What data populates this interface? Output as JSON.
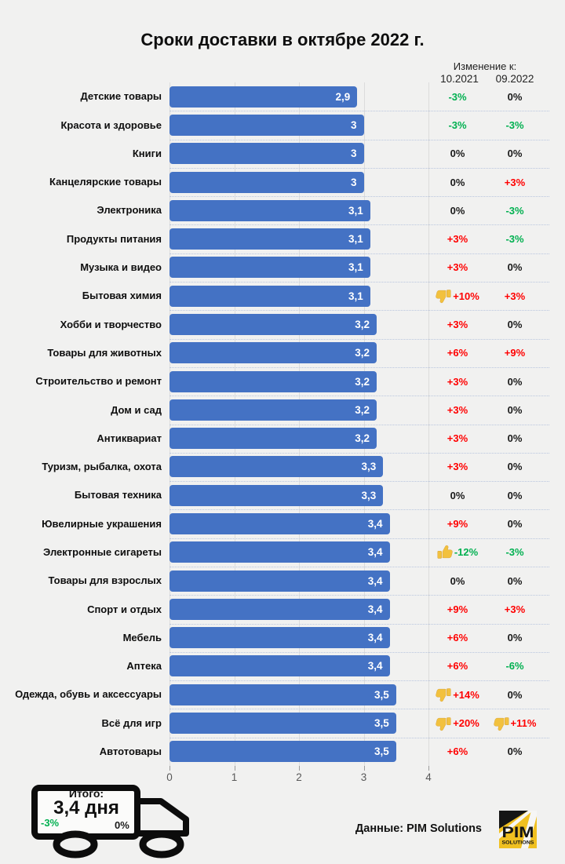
{
  "title": "Сроки доставки в октябре 2022 г.",
  "change_header": {
    "label": "Изменение к:",
    "columns": [
      "10.2021",
      "09.2022"
    ]
  },
  "colors": {
    "bar": "#4472C4",
    "good_green": "#00B050",
    "bad_red": "#FF0000",
    "neutral_black": "#1a1a1a",
    "background": "#f1f1f0",
    "thumb_yellow": "#F2C13E",
    "logo_yellow": "#F0C020"
  },
  "chart_data": {
    "type": "bar",
    "orientation": "horizontal",
    "title": "Сроки доставки в октябре 2022 г.",
    "xlabel": "",
    "ylabel": "",
    "xlim": [
      0,
      4
    ],
    "xticks": [
      0,
      1,
      2,
      3,
      4
    ],
    "grid": "vertical",
    "legend": "none",
    "bar_color": "#4472C4",
    "categories": [
      "Детские товары",
      "Красота и здоровье",
      "Книги",
      "Канцелярские товары",
      "Электроника",
      "Продукты питания",
      "Музыка и видео",
      "Бытовая химия",
      "Хобби и творчество",
      "Товары для животных",
      "Строительство и ремонт",
      "Дом и сад",
      "Антиквариат",
      "Туризм, рыбалка, охота",
      "Бытовая техника",
      "Ювелирные украшения",
      "Электронные сигареты",
      "Товары для взрослых",
      "Спорт и отдых",
      "Мебель",
      "Аптека",
      "Одежда, обувь и аксессуары",
      "Всё для игр",
      "Автотовары"
    ],
    "values": [
      2.9,
      3,
      3,
      3,
      3.1,
      3.1,
      3.1,
      3.1,
      3.2,
      3.2,
      3.2,
      3.2,
      3.2,
      3.3,
      3.3,
      3.4,
      3.4,
      3.4,
      3.4,
      3.4,
      3.4,
      3.5,
      3.5,
      3.5
    ],
    "value_labels": [
      "2,9",
      "3",
      "3",
      "3",
      "3,1",
      "3,1",
      "3,1",
      "3,1",
      "3,2",
      "3,2",
      "3,2",
      "3,2",
      "3,2",
      "3,3",
      "3,3",
      "3,4",
      "3,4",
      "3,4",
      "3,4",
      "3,4",
      "3,4",
      "3,5",
      "3,5",
      "3,5"
    ],
    "change_vs_10_2021": [
      {
        "text": "-3%",
        "color": "#00B050",
        "icon": null
      },
      {
        "text": "-3%",
        "color": "#00B050",
        "icon": null
      },
      {
        "text": "0%",
        "color": "#1a1a1a",
        "icon": null
      },
      {
        "text": "0%",
        "color": "#1a1a1a",
        "icon": null
      },
      {
        "text": "0%",
        "color": "#1a1a1a",
        "icon": null
      },
      {
        "text": "+3%",
        "color": "#FF0000",
        "icon": null
      },
      {
        "text": "+3%",
        "color": "#FF0000",
        "icon": null
      },
      {
        "text": "+10%",
        "color": "#FF0000",
        "icon": "thumbs-down"
      },
      {
        "text": "+3%",
        "color": "#FF0000",
        "icon": null
      },
      {
        "text": "+6%",
        "color": "#FF0000",
        "icon": null
      },
      {
        "text": "+3%",
        "color": "#FF0000",
        "icon": null
      },
      {
        "text": "+3%",
        "color": "#FF0000",
        "icon": null
      },
      {
        "text": "+3%",
        "color": "#FF0000",
        "icon": null
      },
      {
        "text": "+3%",
        "color": "#FF0000",
        "icon": null
      },
      {
        "text": "0%",
        "color": "#1a1a1a",
        "icon": null
      },
      {
        "text": "+9%",
        "color": "#FF0000",
        "icon": null
      },
      {
        "text": "-12%",
        "color": "#00B050",
        "icon": "thumbs-up"
      },
      {
        "text": "0%",
        "color": "#1a1a1a",
        "icon": null
      },
      {
        "text": "+9%",
        "color": "#FF0000",
        "icon": null
      },
      {
        "text": "+6%",
        "color": "#FF0000",
        "icon": null
      },
      {
        "text": "+6%",
        "color": "#FF0000",
        "icon": null
      },
      {
        "text": "+14%",
        "color": "#FF0000",
        "icon": "thumbs-down"
      },
      {
        "text": "+20%",
        "color": "#FF0000",
        "icon": "thumbs-down"
      },
      {
        "text": "+6%",
        "color": "#FF0000",
        "icon": null
      }
    ],
    "change_vs_09_2022": [
      {
        "text": "0%",
        "color": "#1a1a1a",
        "icon": null
      },
      {
        "text": "-3%",
        "color": "#00B050",
        "icon": null
      },
      {
        "text": "0%",
        "color": "#1a1a1a",
        "icon": null
      },
      {
        "text": "+3%",
        "color": "#FF0000",
        "icon": null
      },
      {
        "text": "-3%",
        "color": "#00B050",
        "icon": null
      },
      {
        "text": "-3%",
        "color": "#00B050",
        "icon": null
      },
      {
        "text": "0%",
        "color": "#1a1a1a",
        "icon": null
      },
      {
        "text": "+3%",
        "color": "#FF0000",
        "icon": null
      },
      {
        "text": "0%",
        "color": "#1a1a1a",
        "icon": null
      },
      {
        "text": "+9%",
        "color": "#FF0000",
        "icon": null
      },
      {
        "text": "0%",
        "color": "#1a1a1a",
        "icon": null
      },
      {
        "text": "0%",
        "color": "#1a1a1a",
        "icon": null
      },
      {
        "text": "0%",
        "color": "#1a1a1a",
        "icon": null
      },
      {
        "text": "0%",
        "color": "#1a1a1a",
        "icon": null
      },
      {
        "text": "0%",
        "color": "#1a1a1a",
        "icon": null
      },
      {
        "text": "0%",
        "color": "#1a1a1a",
        "icon": null
      },
      {
        "text": "-3%",
        "color": "#00B050",
        "icon": null
      },
      {
        "text": "0%",
        "color": "#1a1a1a",
        "icon": null
      },
      {
        "text": "+3%",
        "color": "#FF0000",
        "icon": null
      },
      {
        "text": "0%",
        "color": "#1a1a1a",
        "icon": null
      },
      {
        "text": "-6%",
        "color": "#00B050",
        "icon": null
      },
      {
        "text": "0%",
        "color": "#1a1a1a",
        "icon": null
      },
      {
        "text": "+11%",
        "color": "#FF0000",
        "icon": "thumbs-down"
      },
      {
        "text": "0%",
        "color": "#1a1a1a",
        "icon": null
      }
    ]
  },
  "footer": {
    "total_label": "Итого:",
    "total_value": "3,4 дня",
    "total_change_10_2021": "-3%",
    "total_change_09_2022": "0%",
    "source": "Данные: PIM Solutions",
    "logo": {
      "line1": "PIM",
      "line2": "SOLUTIONS"
    }
  }
}
